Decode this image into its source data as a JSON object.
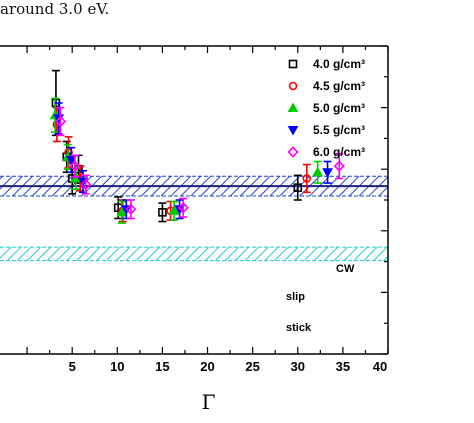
{
  "caption": "around 3.0 eV.",
  "chart_data": {
    "type": "scatter",
    "xlabel": "Γ",
    "xlim": [
      -3,
      40
    ],
    "ylim": [
      0,
      1
    ],
    "xticks": [
      5,
      10,
      15,
      20,
      25,
      30,
      35,
      40
    ],
    "xtick_labels": [
      "5",
      "10",
      "15",
      "20",
      "25",
      "30",
      "35",
      "40"
    ],
    "legend_position": "top-right",
    "series": [
      {
        "name": "4.0 g/cm³",
        "color": "#000000",
        "marker": "square",
        "points": [
          {
            "x": 3.2,
            "y": 0.815,
            "err": 0.105
          },
          {
            "x": 4.4,
            "y": 0.64,
            "err": 0.05
          },
          {
            "x": 5.0,
            "y": 0.57,
            "err": 0.05
          },
          {
            "x": 5.7,
            "y": 0.6,
            "err": 0.045
          },
          {
            "x": 10.1,
            "y": 0.475,
            "err": 0.035
          },
          {
            "x": 15.0,
            "y": 0.46,
            "err": 0.03
          },
          {
            "x": 30.0,
            "y": 0.54,
            "err": 0.04
          }
        ]
      },
      {
        "name": "4.5 g/cm³",
        "color": "#ff0000",
        "marker": "circle",
        "points": [
          {
            "x": 3.3,
            "y": 0.745,
            "err": 0.055
          },
          {
            "x": 4.6,
            "y": 0.655,
            "err": 0.05
          },
          {
            "x": 5.9,
            "y": 0.57,
            "err": 0.04
          },
          {
            "x": 10.6,
            "y": 0.465,
            "err": 0.035
          },
          {
            "x": 15.9,
            "y": 0.465,
            "err": 0.03
          },
          {
            "x": 31.0,
            "y": 0.57,
            "err": 0.045
          }
        ]
      },
      {
        "name": "5.0 g/cm³",
        "color": "#00cc00",
        "marker": "triangle-up",
        "points": [
          {
            "x": 3.1,
            "y": 0.775,
            "err": 0.055
          },
          {
            "x": 4.5,
            "y": 0.64,
            "err": 0.04
          },
          {
            "x": 5.4,
            "y": 0.57,
            "err": 0.035
          },
          {
            "x": 10.5,
            "y": 0.46,
            "err": 0.035
          },
          {
            "x": 16.3,
            "y": 0.465,
            "err": 0.03
          },
          {
            "x": 32.2,
            "y": 0.59,
            "err": 0.035
          }
        ]
      },
      {
        "name": "5.5 g/cm³",
        "color": "#0000ff",
        "marker": "triangle-down",
        "points": [
          {
            "x": 3.5,
            "y": 0.765,
            "err": 0.05
          },
          {
            "x": 4.9,
            "y": 0.63,
            "err": 0.04
          },
          {
            "x": 6.2,
            "y": 0.56,
            "err": 0.035
          },
          {
            "x": 11.0,
            "y": 0.47,
            "err": 0.03
          },
          {
            "x": 16.9,
            "y": 0.47,
            "err": 0.03
          },
          {
            "x": 33.3,
            "y": 0.59,
            "err": 0.035
          }
        ]
      },
      {
        "name": "6.0 g/cm³",
        "color": "#ff00ff",
        "marker": "diamond",
        "points": [
          {
            "x": 3.7,
            "y": 0.755,
            "err": 0.045
          },
          {
            "x": 5.3,
            "y": 0.61,
            "err": 0.035
          },
          {
            "x": 6.5,
            "y": 0.55,
            "err": 0.03
          },
          {
            "x": 11.5,
            "y": 0.47,
            "err": 0.03
          },
          {
            "x": 17.3,
            "y": 0.475,
            "err": 0.03
          },
          {
            "x": 34.6,
            "y": 0.61,
            "err": 0.04
          }
        ]
      }
    ],
    "reference_bands": [
      {
        "label": "CW",
        "center": 0.545,
        "half_width": 0.032,
        "color": "#2244cc",
        "style": "hatched with center line"
      },
      {
        "label": "slip",
        "center": 0.325,
        "half_width": 0.022,
        "color": "#22cccc",
        "style": "hatched"
      }
    ],
    "annotations": [
      "CW",
      "slip",
      "stick"
    ],
    "colors": {
      "cw_band": "#2244cc",
      "slip_band": "#22cccc"
    }
  }
}
